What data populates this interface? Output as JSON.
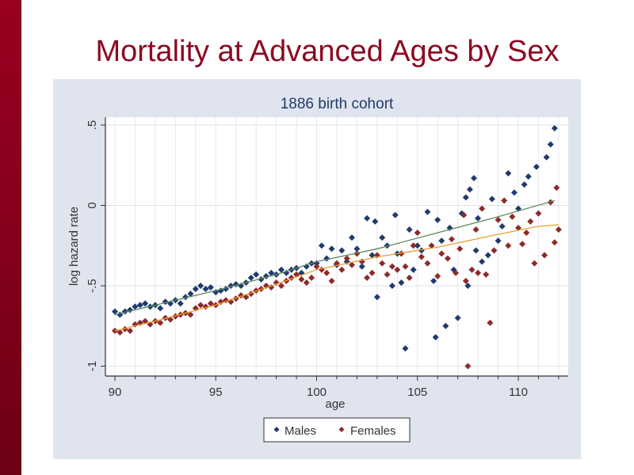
{
  "slide": {
    "title": "Mortality at Advanced Ages by Sex"
  },
  "colors": {
    "males": "#1f3a6e",
    "females": "#8e2a2a",
    "males_fit": "#5a8a5a",
    "females_fit": "#e8a030",
    "title": "#8c0a22"
  },
  "chart_data": {
    "type": "scatter",
    "title": "1886 birth cohort",
    "xlabel": "age",
    "ylabel": "log hazard rate",
    "xlim": [
      89.5,
      112.4
    ],
    "ylim": [
      -1.06,
      0.54
    ],
    "xticks": [
      90,
      95,
      100,
      105,
      110
    ],
    "xtick_labels": [
      "90",
      "95",
      "100",
      "105",
      "110"
    ],
    "yticks": [
      -1,
      -0.5,
      0,
      0.5
    ],
    "ytick_labels": [
      "-1",
      "-.5",
      "0",
      ".5"
    ],
    "grid": true,
    "legend": {
      "placement": "bottom",
      "entries": [
        "Males",
        "Females"
      ]
    },
    "series": [
      {
        "name": "Males",
        "points": [
          [
            90.0,
            -0.66
          ],
          [
            90.25,
            -0.68
          ],
          [
            90.5,
            -0.66
          ],
          [
            90.75,
            -0.65
          ],
          [
            91.0,
            -0.63
          ],
          [
            91.25,
            -0.62
          ],
          [
            91.5,
            -0.61
          ],
          [
            91.75,
            -0.63
          ],
          [
            92.0,
            -0.62
          ],
          [
            92.25,
            -0.64
          ],
          [
            92.5,
            -0.6
          ],
          [
            92.75,
            -0.61
          ],
          [
            93.0,
            -0.59
          ],
          [
            93.25,
            -0.61
          ],
          [
            93.5,
            -0.57
          ],
          [
            93.75,
            -0.55
          ],
          [
            94.0,
            -0.52
          ],
          [
            94.25,
            -0.5
          ],
          [
            94.5,
            -0.52
          ],
          [
            94.75,
            -0.51
          ],
          [
            95.0,
            -0.54
          ],
          [
            95.25,
            -0.53
          ],
          [
            95.5,
            -0.52
          ],
          [
            95.75,
            -0.5
          ],
          [
            96.0,
            -0.49
          ],
          [
            96.25,
            -0.5
          ],
          [
            96.5,
            -0.48
          ],
          [
            96.75,
            -0.45
          ],
          [
            97.0,
            -0.43
          ],
          [
            97.25,
            -0.46
          ],
          [
            97.5,
            -0.44
          ],
          [
            97.75,
            -0.42
          ],
          [
            98.0,
            -0.43
          ],
          [
            98.25,
            -0.4
          ],
          [
            98.5,
            -0.42
          ],
          [
            98.75,
            -0.4
          ],
          [
            99.0,
            -0.39
          ],
          [
            99.25,
            -0.42
          ],
          [
            99.5,
            -0.38
          ],
          [
            99.75,
            -0.36
          ],
          [
            100.0,
            -0.36
          ],
          [
            100.25,
            -0.25
          ],
          [
            100.5,
            -0.33
          ],
          [
            100.75,
            -0.27
          ],
          [
            101.0,
            -0.37
          ],
          [
            101.25,
            -0.28
          ],
          [
            101.5,
            -0.35
          ],
          [
            101.75,
            -0.2
          ],
          [
            102.0,
            -0.27
          ],
          [
            102.25,
            -0.38
          ],
          [
            102.5,
            -0.08
          ],
          [
            102.75,
            -0.31
          ],
          [
            102.9,
            -0.1
          ],
          [
            103.0,
            -0.57
          ],
          [
            103.25,
            -0.2
          ],
          [
            103.5,
            -0.25
          ],
          [
            103.75,
            -0.5
          ],
          [
            103.9,
            -0.06
          ],
          [
            104.0,
            -0.3
          ],
          [
            104.2,
            -0.48
          ],
          [
            104.4,
            -0.89
          ],
          [
            104.6,
            -0.15
          ],
          [
            104.8,
            -0.4
          ],
          [
            105.0,
            -0.25
          ],
          [
            105.2,
            -0.28
          ],
          [
            105.5,
            -0.04
          ],
          [
            105.8,
            -0.47
          ],
          [
            105.9,
            -0.82
          ],
          [
            106.0,
            -0.09
          ],
          [
            106.2,
            -0.22
          ],
          [
            106.4,
            -0.75
          ],
          [
            106.6,
            -0.14
          ],
          [
            106.8,
            -0.4
          ],
          [
            107.0,
            -0.7
          ],
          [
            107.2,
            -0.05
          ],
          [
            107.4,
            0.05
          ],
          [
            107.5,
            -0.5
          ],
          [
            107.6,
            0.1
          ],
          [
            107.8,
            0.17
          ],
          [
            107.9,
            -0.28
          ],
          [
            108.0,
            -0.08
          ],
          [
            108.2,
            -0.35
          ],
          [
            108.5,
            -0.31
          ],
          [
            108.7,
            0.04
          ],
          [
            109.0,
            -0.22
          ],
          [
            109.2,
            -0.13
          ],
          [
            109.5,
            0.2
          ],
          [
            109.8,
            0.08
          ],
          [
            110.0,
            -0.02
          ],
          [
            110.3,
            0.13
          ],
          [
            110.5,
            0.18
          ],
          [
            110.9,
            0.24
          ],
          [
            111.4,
            0.3
          ],
          [
            111.6,
            0.38
          ],
          [
            111.8,
            0.48
          ]
        ],
        "fit": [
          [
            90,
            -0.68
          ],
          [
            92,
            -0.62
          ],
          [
            95,
            -0.53
          ],
          [
            98,
            -0.43
          ],
          [
            100,
            -0.35
          ],
          [
            103,
            -0.27
          ],
          [
            106,
            -0.17
          ],
          [
            109,
            -0.07
          ],
          [
            111.8,
            0.03
          ]
        ]
      },
      {
        "name": "Females",
        "points": [
          [
            90.0,
            -0.78
          ],
          [
            90.25,
            -0.79
          ],
          [
            90.5,
            -0.77
          ],
          [
            90.75,
            -0.78
          ],
          [
            91.0,
            -0.74
          ],
          [
            91.25,
            -0.73
          ],
          [
            91.5,
            -0.72
          ],
          [
            91.75,
            -0.74
          ],
          [
            92.0,
            -0.72
          ],
          [
            92.25,
            -0.73
          ],
          [
            92.5,
            -0.7
          ],
          [
            92.75,
            -0.71
          ],
          [
            93.0,
            -0.69
          ],
          [
            93.25,
            -0.68
          ],
          [
            93.5,
            -0.67
          ],
          [
            93.75,
            -0.68
          ],
          [
            94.0,
            -0.64
          ],
          [
            94.25,
            -0.62
          ],
          [
            94.5,
            -0.63
          ],
          [
            94.75,
            -0.61
          ],
          [
            95.0,
            -0.62
          ],
          [
            95.25,
            -0.6
          ],
          [
            95.5,
            -0.59
          ],
          [
            95.75,
            -0.6
          ],
          [
            96.0,
            -0.58
          ],
          [
            96.25,
            -0.56
          ],
          [
            96.5,
            -0.57
          ],
          [
            96.75,
            -0.55
          ],
          [
            97.0,
            -0.53
          ],
          [
            97.25,
            -0.52
          ],
          [
            97.5,
            -0.5
          ],
          [
            97.75,
            -0.51
          ],
          [
            98.0,
            -0.48
          ],
          [
            98.25,
            -0.5
          ],
          [
            98.5,
            -0.47
          ],
          [
            98.75,
            -0.45
          ],
          [
            99.0,
            -0.43
          ],
          [
            99.25,
            -0.46
          ],
          [
            99.5,
            -0.48
          ],
          [
            99.75,
            -0.45
          ],
          [
            100.0,
            -0.38
          ],
          [
            100.25,
            -0.4
          ],
          [
            100.5,
            -0.42
          ],
          [
            100.75,
            -0.47
          ],
          [
            101.0,
            -0.36
          ],
          [
            101.25,
            -0.4
          ],
          [
            101.5,
            -0.33
          ],
          [
            101.75,
            -0.37
          ],
          [
            102.0,
            -0.3
          ],
          [
            102.25,
            -0.35
          ],
          [
            102.5,
            -0.45
          ],
          [
            102.75,
            -0.42
          ],
          [
            103.0,
            -0.31
          ],
          [
            103.25,
            -0.36
          ],
          [
            103.5,
            -0.43
          ],
          [
            103.75,
            -0.38
          ],
          [
            104.0,
            -0.4
          ],
          [
            104.2,
            -0.3
          ],
          [
            104.4,
            -0.38
          ],
          [
            104.6,
            -0.45
          ],
          [
            104.8,
            -0.25
          ],
          [
            105.0,
            -0.17
          ],
          [
            105.2,
            -0.32
          ],
          [
            105.5,
            -0.36
          ],
          [
            105.7,
            -0.25
          ],
          [
            106.0,
            -0.44
          ],
          [
            106.2,
            -0.3
          ],
          [
            106.5,
            -0.33
          ],
          [
            106.7,
            -0.21
          ],
          [
            106.9,
            -0.42
          ],
          [
            107.1,
            -0.27
          ],
          [
            107.3,
            -0.06
          ],
          [
            107.4,
            -0.47
          ],
          [
            107.5,
            -1.0
          ],
          [
            107.7,
            -0.4
          ],
          [
            107.9,
            -0.15
          ],
          [
            108.0,
            -0.42
          ],
          [
            108.2,
            -0.02
          ],
          [
            108.4,
            -0.43
          ],
          [
            108.6,
            -0.73
          ],
          [
            108.8,
            -0.28
          ],
          [
            109.0,
            -0.09
          ],
          [
            109.3,
            0.03
          ],
          [
            109.5,
            -0.25
          ],
          [
            109.7,
            -0.07
          ],
          [
            110.0,
            -0.14
          ],
          [
            110.2,
            -0.24
          ],
          [
            110.4,
            -0.17
          ],
          [
            110.6,
            -0.1
          ],
          [
            110.8,
            -0.36
          ],
          [
            111.0,
            -0.05
          ],
          [
            111.3,
            -0.31
          ],
          [
            111.6,
            0.02
          ],
          [
            111.8,
            -0.23
          ],
          [
            111.9,
            0.11
          ],
          [
            112.0,
            -0.15
          ]
        ],
        "fit": [
          [
            90,
            -0.78
          ],
          [
            92,
            -0.72
          ],
          [
            95,
            -0.62
          ],
          [
            98,
            -0.49
          ],
          [
            100,
            -0.4
          ],
          [
            103,
            -0.32
          ],
          [
            106,
            -0.26
          ],
          [
            109,
            -0.18
          ],
          [
            111,
            -0.13
          ],
          [
            112,
            -0.12
          ]
        ]
      }
    ]
  }
}
